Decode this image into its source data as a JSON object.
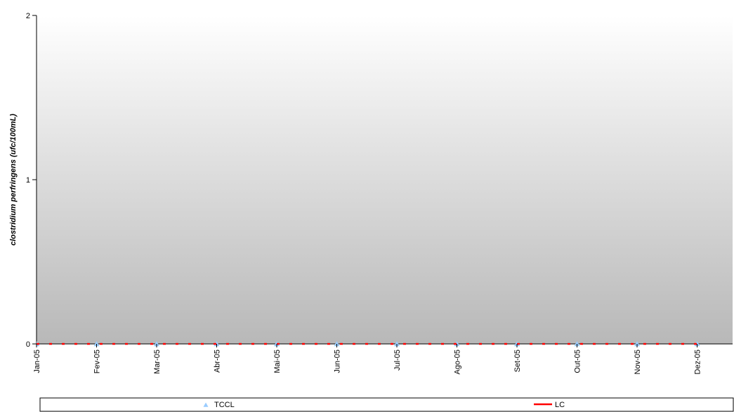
{
  "chart_data": {
    "type": "line",
    "y_label": "clostridium perfringens  (ufc/100mL)",
    "categories": [
      "Jan-05",
      "Fev-05",
      "Mar-05",
      "Abr-05",
      "Mai-05",
      "Jun-05",
      "Jul-05",
      "Ago-05",
      "Set-05",
      "Out-05",
      "Nov-05",
      "Dez-05"
    ],
    "series": [
      {
        "name": "TCCL",
        "color": "#99ccff",
        "marker": "triangle",
        "values": [
          0,
          0,
          0,
          0,
          0,
          0,
          0,
          0,
          0,
          0,
          0,
          0
        ]
      },
      {
        "name": "LC",
        "color": "#ff0000",
        "values": [
          0,
          0,
          0,
          0,
          0,
          0,
          0,
          0,
          0,
          0,
          0,
          0
        ]
      }
    ],
    "ylim": [
      0,
      2
    ],
    "yticks": [
      0,
      1,
      2
    ]
  }
}
